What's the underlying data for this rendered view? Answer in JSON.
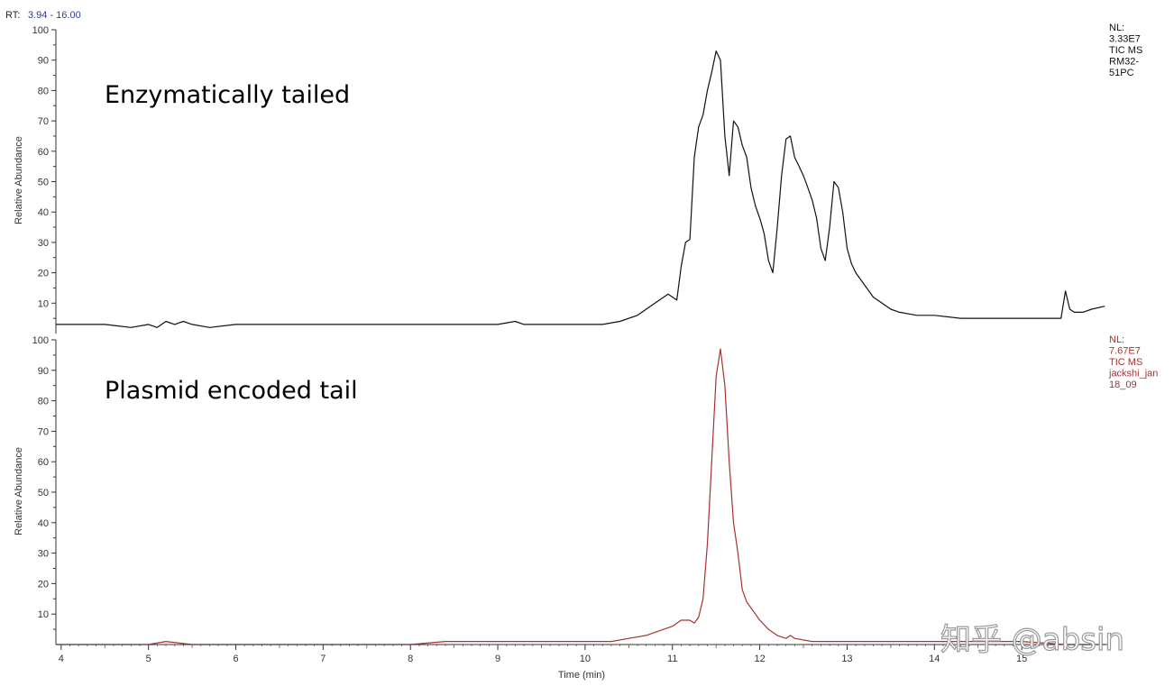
{
  "header": {
    "rt_label": "RT:",
    "rt_range": "3.94 - 16.00"
  },
  "watermark": "知乎 @absin",
  "chart_data": {
    "type": "line",
    "xlabel": "Time (min)",
    "xlim": [
      3.94,
      16.0
    ],
    "x_ticks": [
      "4",
      "5",
      "6",
      "7",
      "8",
      "9",
      "10",
      "11",
      "12",
      "13",
      "14",
      "15"
    ],
    "panels": [
      {
        "label": "Enzymatically tailed",
        "ylabel": "Relative Abundance",
        "ylim": [
          0,
          100
        ],
        "y_ticks": [
          "10",
          "20",
          "30",
          "40",
          "50",
          "60",
          "70",
          "80",
          "90",
          "100"
        ],
        "color": "#111111",
        "info": [
          "NL:",
          "3.33E7",
          "TIC  MS",
          "RM32-",
          "51PC"
        ],
        "series": [
          {
            "x": [
              3.94,
              4.2,
              4.5,
              4.8,
              5.0,
              5.1,
              5.2,
              5.3,
              5.4,
              5.5,
              5.7,
              6.0,
              6.5,
              7.0,
              7.5,
              8.0,
              8.5,
              9.0,
              9.2,
              9.3,
              9.5,
              10.0,
              10.2,
              10.4,
              10.6,
              10.8,
              10.95,
              11.05,
              11.1,
              11.15,
              11.2,
              11.25,
              11.3,
              11.35,
              11.4,
              11.45,
              11.5,
              11.55,
              11.6,
              11.65,
              11.7,
              11.75,
              11.8,
              11.85,
              11.9,
              11.95,
              12.0,
              12.05,
              12.1,
              12.15,
              12.2,
              12.25,
              12.3,
              12.35,
              12.4,
              12.45,
              12.5,
              12.55,
              12.6,
              12.65,
              12.7,
              12.75,
              12.8,
              12.85,
              12.9,
              12.95,
              13.0,
              13.05,
              13.1,
              13.2,
              13.3,
              13.4,
              13.5,
              13.6,
              13.8,
              14.0,
              14.3,
              14.6,
              14.9,
              15.1,
              15.3,
              15.45,
              15.5,
              15.55,
              15.6,
              15.7,
              15.8,
              15.95
            ],
            "y": [
              3,
              3,
              3,
              2,
              3,
              2,
              4,
              3,
              4,
              3,
              2,
              3,
              3,
              3,
              3,
              3,
              3,
              3,
              4,
              3,
              3,
              3,
              3,
              4,
              6,
              10,
              13,
              11,
              22,
              30,
              31,
              58,
              68,
              72,
              80,
              86,
              93,
              90,
              65,
              52,
              70,
              68,
              62,
              58,
              48,
              42,
              38,
              33,
              24,
              20,
              35,
              52,
              64,
              65,
              58,
              55,
              52,
              48,
              44,
              38,
              28,
              24,
              35,
              50,
              48,
              40,
              28,
              23,
              20,
              16,
              12,
              10,
              8,
              7,
              6,
              6,
              5,
              5,
              5,
              5,
              5,
              5,
              14,
              8,
              7,
              7,
              8,
              9
            ]
          }
        ]
      },
      {
        "label": "Plasmid encoded tail",
        "ylabel": "Relative Abundance",
        "ylim": [
          0,
          100
        ],
        "y_ticks": [
          "10",
          "20",
          "30",
          "40",
          "50",
          "60",
          "70",
          "80",
          "90",
          "100"
        ],
        "color": "#a83230",
        "info": [
          "NL:",
          "7.67E7",
          "TIC  MS",
          "jackshi_jan",
          "18_09"
        ],
        "series": [
          {
            "x": [
              3.94,
              4.5,
              5.0,
              5.2,
              5.5,
              6.0,
              7.0,
              8.0,
              8.4,
              9.0,
              9.5,
              10.0,
              10.3,
              10.5,
              10.7,
              10.9,
              11.0,
              11.1,
              11.2,
              11.25,
              11.3,
              11.35,
              11.4,
              11.45,
              11.5,
              11.55,
              11.6,
              11.65,
              11.7,
              11.75,
              11.8,
              11.85,
              11.9,
              11.95,
              12.0,
              12.1,
              12.2,
              12.3,
              12.35,
              12.4,
              12.6,
              12.8,
              13.0,
              13.5,
              14.0,
              14.5,
              15.0,
              15.5,
              15.95
            ],
            "y": [
              0,
              0,
              0,
              1,
              0,
              0,
              0,
              0,
              1,
              1,
              1,
              1,
              1,
              2,
              3,
              5,
              6,
              8,
              8,
              7,
              9,
              15,
              33,
              60,
              88,
              97,
              85,
              60,
              40,
              30,
              18,
              14,
              12,
              10,
              8,
              5,
              3,
              2,
              3,
              2,
              1,
              1,
              1,
              1,
              1,
              1,
              1,
              0,
              0
            ]
          }
        ]
      }
    ]
  }
}
